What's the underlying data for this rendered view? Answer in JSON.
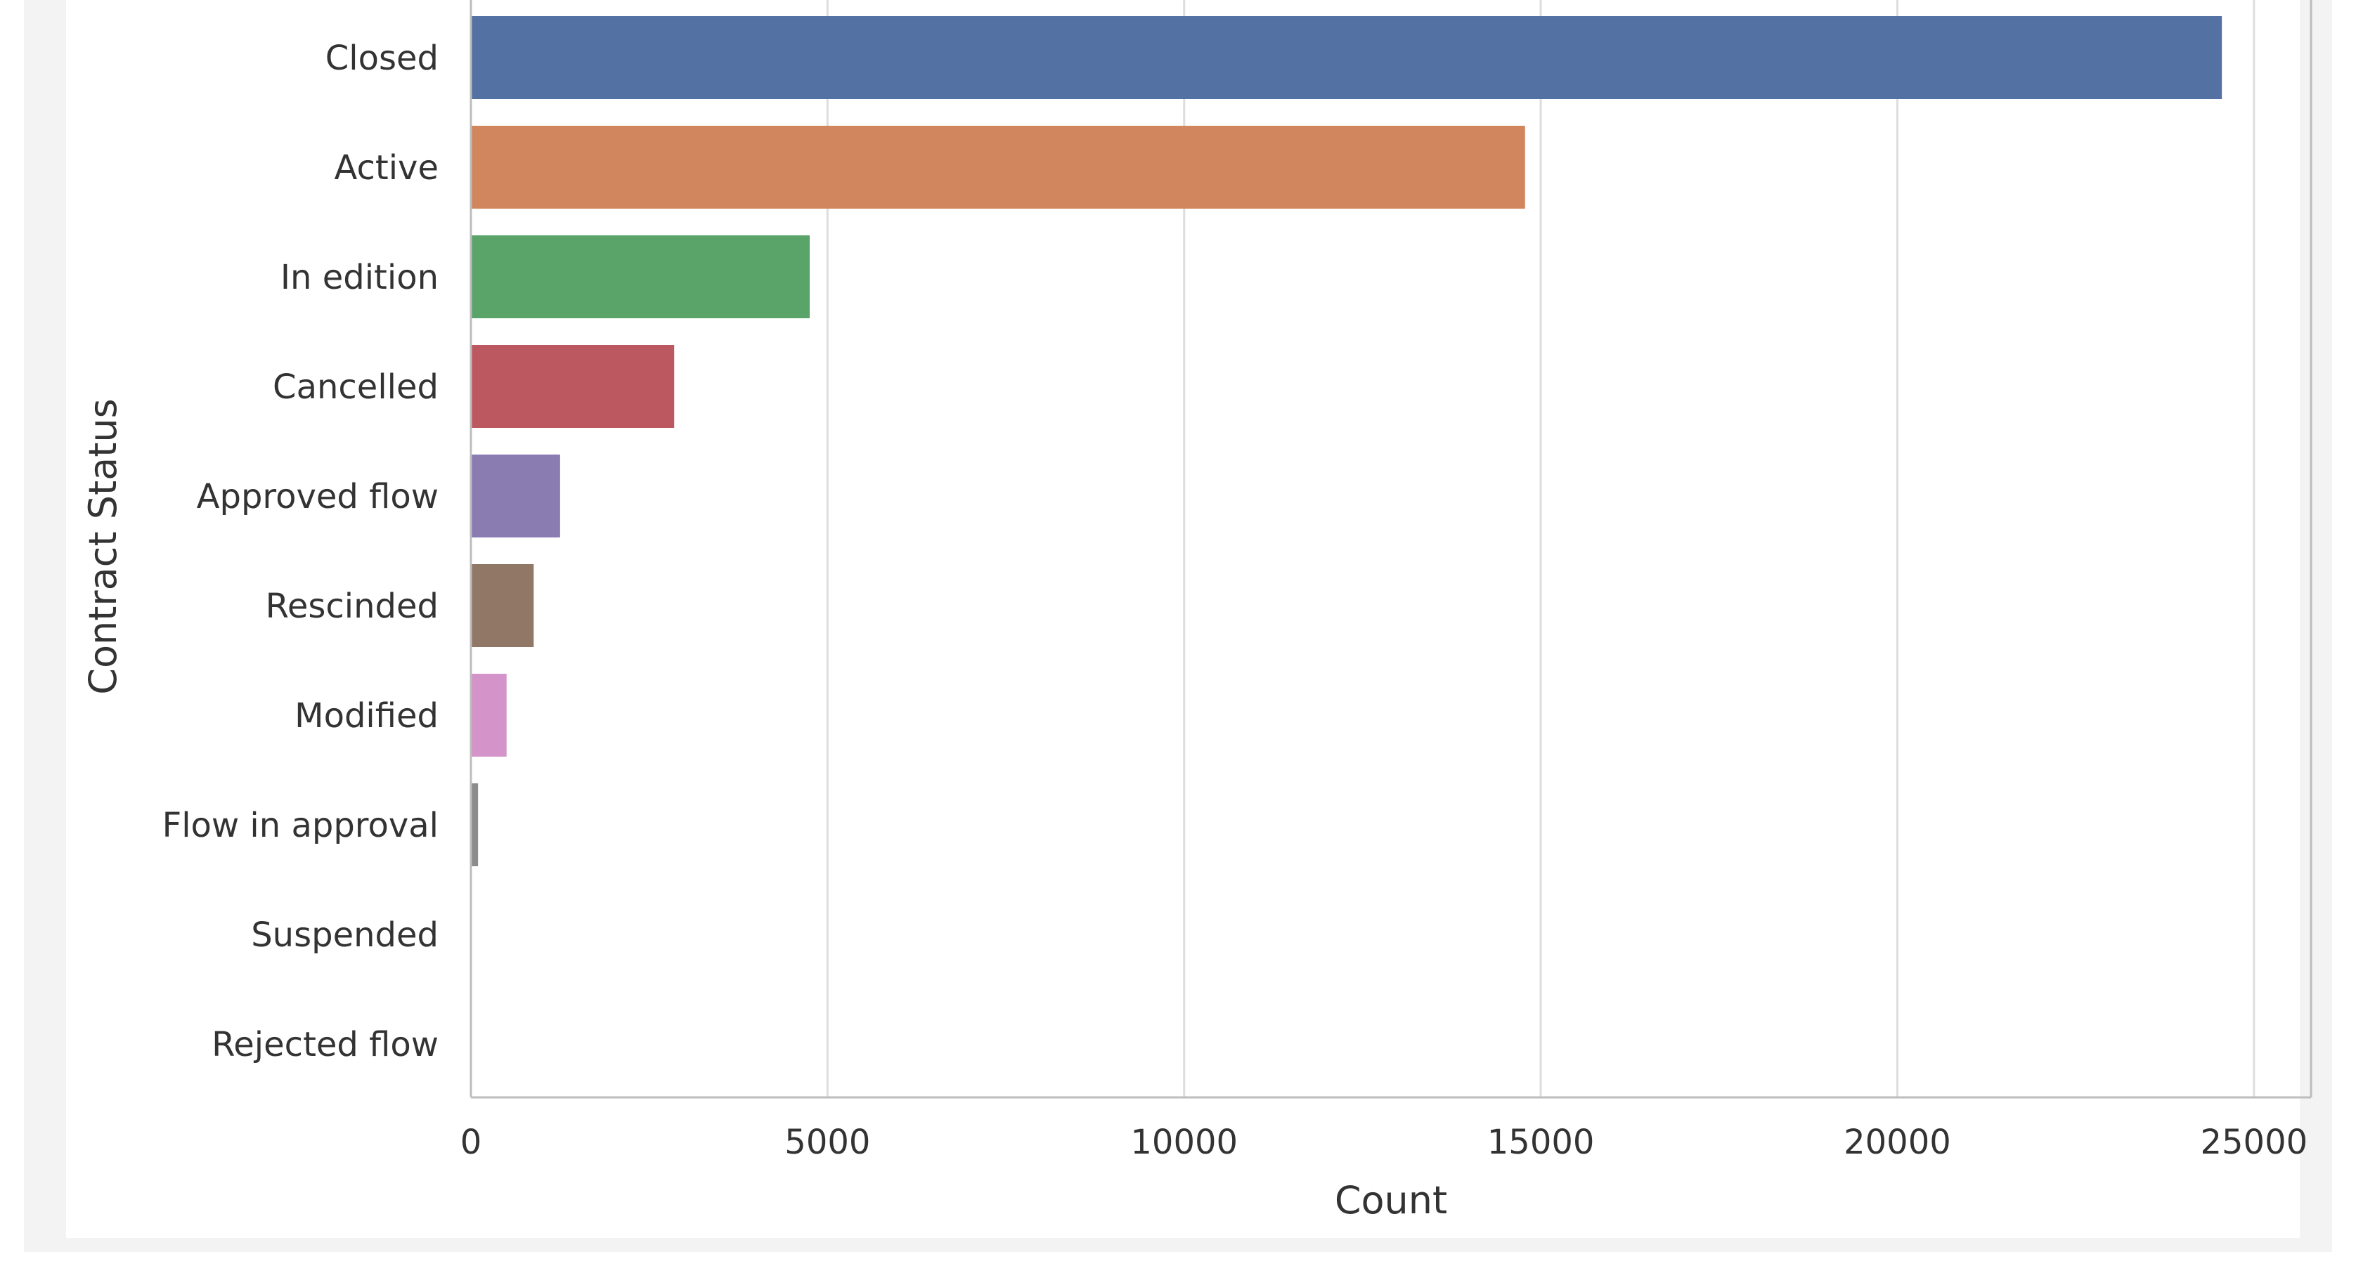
{
  "chart_data": {
    "type": "bar",
    "orientation": "horizontal",
    "xlabel": "Count",
    "ylabel": "Contract Status",
    "xlim": [
      0,
      25800
    ],
    "xticks": [
      0,
      5000,
      10000,
      15000,
      20000,
      25000
    ],
    "xtick_labels": [
      "0",
      "5000",
      "10000",
      "15000",
      "20000",
      "25000"
    ],
    "grid": "vertical",
    "categories": [
      "Closed",
      "Active",
      "In edition",
      "Cancelled",
      "Approved flow",
      "Rescinded",
      "Modified",
      "Flow in approval",
      "Suspended",
      "Rejected flow"
    ],
    "values": [
      24550,
      14780,
      4750,
      2850,
      1250,
      880,
      500,
      100,
      10,
      5
    ],
    "colors": [
      "#5471a4",
      "#d1865e",
      "#5aa46a",
      "#bc5860",
      "#8a7bb1",
      "#917766",
      "#d594c9",
      "#8c8c8c",
      "#cccc77",
      "#6fb7d6"
    ]
  }
}
